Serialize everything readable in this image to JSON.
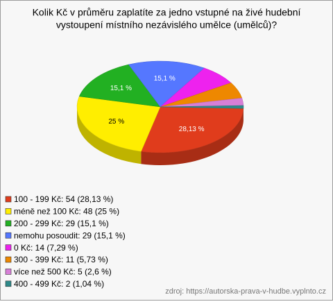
{
  "chart_data": {
    "type": "pie3d",
    "title": [
      "Kolik Kč v průměru zaplatíte za jedno vstupné na živé hudební",
      "vystoupení místního nezávislého umělce (umělců)?"
    ],
    "categories": [
      "100 - 199 Kč: 54 (28,13 %)",
      "méně než 100 Kč: 48 (25 %)",
      "200 - 299 Kč: 29 (15,1 %)",
      "nemohu posoudit: 29 (15,1 %)",
      "0 Kč: 14 (7,29 %)",
      "300 - 399 Kč: 11 (5,73 %)",
      "více než 500 Kč: 5 (2,6 %)",
      "400 - 499 Kč: 2 (1,04 %)"
    ],
    "values": [
      28.13,
      25,
      15.1,
      15.1,
      7.29,
      5.73,
      2.6,
      1.04
    ],
    "value_labels": [
      "28,13 %",
      "25 %",
      "15,1 %",
      "15,1 %",
      null,
      null,
      null,
      null
    ],
    "colors": [
      "#e03c1c",
      "#ffee00",
      "#22b022",
      "#5577ff",
      "#ee22ee",
      "#ee8800",
      "#d77fd7",
      "#2f8a8a"
    ],
    "legend": "bottom-left",
    "source": "zdroj: https://autorska-prava-v-hudbe.vyplnto.cz"
  }
}
